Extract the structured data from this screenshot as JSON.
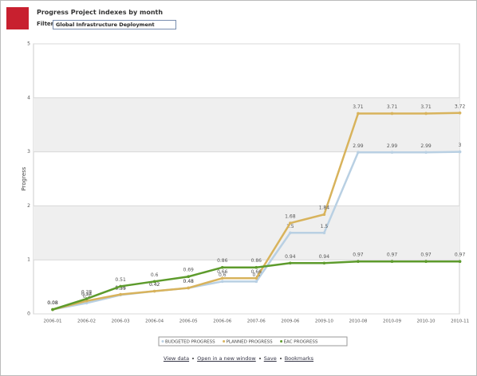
{
  "header": {
    "title": "Progress Project indexes by month",
    "filter_label": "Filter",
    "filter_value": "Global Infrastructure Deployment"
  },
  "chart_data": {
    "type": "line",
    "y_label": "Progress",
    "categories": [
      "2006-01",
      "2006-02",
      "2006-03",
      "2006-04",
      "2006-05",
      "2006-06",
      "2007-06",
      "2009-06",
      "2009-10",
      "2010-08",
      "2010-09",
      "2010-10",
      "2010-11"
    ],
    "series": [
      {
        "name": "BUDGETED PROGRESS",
        "color": "#b9d0e3",
        "values": [
          0.08,
          0.2,
          0.35,
          0.42,
          0.48,
          0.6,
          0.6,
          1.5,
          1.5,
          2.99,
          2.99,
          2.99,
          3
        ]
      },
      {
        "name": "PLANNED PROGRESS",
        "color": "#d8b35c",
        "values": [
          0.08,
          0.24,
          0.36,
          0.42,
          0.48,
          0.66,
          0.66,
          1.68,
          1.84,
          3.71,
          3.71,
          3.71,
          3.72
        ]
      },
      {
        "name": "EAC PROGRESS",
        "color": "#5d9b2c",
        "values": [
          0.08,
          0.28,
          0.51,
          0.6,
          0.69,
          0.86,
          0.86,
          0.94,
          0.94,
          0.97,
          0.97,
          0.97,
          0.97
        ]
      }
    ],
    "ylim": [
      0,
      5
    ],
    "yticks": [
      0,
      1,
      2,
      3,
      4,
      5
    ],
    "grid": true,
    "legend": "bottom"
  },
  "links": [
    "View data",
    "Open in a new window",
    "Save",
    "Bookmarks"
  ]
}
